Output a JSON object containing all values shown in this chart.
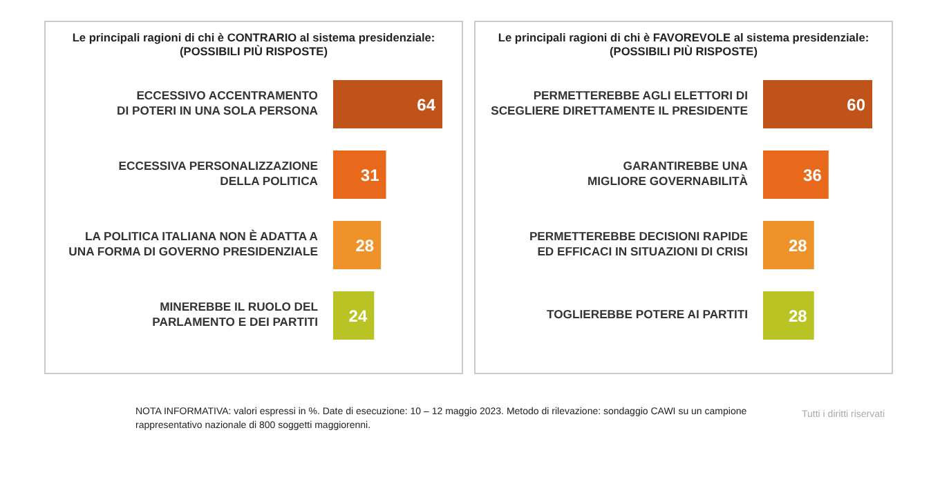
{
  "chart_data": [
    {
      "type": "bar",
      "orientation": "horizontal",
      "data_labels": true,
      "title": "Le principali ragioni di chi è CONTRARIO al sistema presidenziale:",
      "subtitle": "(POSSIBILI PIÙ RISPOSTE)",
      "categories": [
        "ECCESSIVO ACCENTRAMENTO\nDI POTERI IN UNA SOLA PERSONA",
        "ECCESSIVA PERSONALIZZAZIONE\nDELLA POLITICA",
        "LA POLITICA ITALIANA NON È ADATTA A\nUNA FORMA DI GOVERNO PRESIDENZIALE",
        "MINEREBBE IL RUOLO DEL\nPARLAMENTO E DEI PARTITI"
      ],
      "values": [
        64,
        31,
        28,
        24
      ],
      "colors": [
        "#c0531a",
        "#e8681c",
        "#f0922a",
        "#b9c424"
      ],
      "annotations": [
        "NOTA INFORMATIVA: valori espressi in %. Date di esecuzione: 10 – 12 maggio 2023. Metodo di rilevazione: sondaggio CAWI su un campione rappresentativo nazionale di 800 soggetti maggiorenni.",
        "Tutti i diritti riservati"
      ]
    },
    {
      "type": "bar",
      "orientation": "horizontal",
      "data_labels": true,
      "title": "Le principali ragioni di chi è FAVOREVOLE al sistema presidenziale:",
      "subtitle": "(POSSIBILI PIÙ RISPOSTE)",
      "categories": [
        "PERMETTEREBBE AGLI ELETTORI DI\nSCEGLIERE DIRETTAMENTE IL PRESIDENTE",
        "GARANTIREBBE UNA\nMIGLIORE GOVERNABILITÀ",
        "PERMETTEREBBE DECISIONI RAPIDE\nED EFFICACI IN SITUAZIONI DI CRISI",
        "TOGLIEREBBE POTERE AI PARTITI"
      ],
      "values": [
        60,
        36,
        28,
        28
      ],
      "colors": [
        "#c0531a",
        "#e8681c",
        "#f0922a",
        "#b9c424"
      ]
    }
  ]
}
